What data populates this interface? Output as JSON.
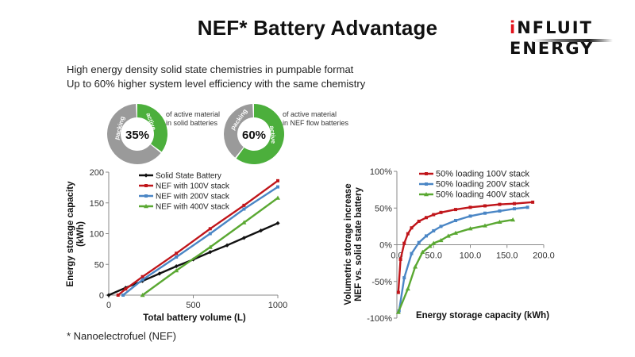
{
  "slide": {
    "title": "NEF* Battery Advantage",
    "bullets": [
      "High energy density solid state chemistries  in pumpable format",
      "Up to 60% higher system level efficiency with the same chemistry"
    ],
    "footnote": "* Nanoelectrofuel (NEF)"
  },
  "logo": {
    "line1_prefix": "i",
    "line1_rest": "NFLUIT",
    "line2": "ENERGY"
  },
  "donuts": [
    {
      "value_label": "35%",
      "fraction": 0.35,
      "active_label": "active",
      "packing_label": "packing",
      "caption": [
        "of active material",
        "in solid batteries"
      ]
    },
    {
      "value_label": "60%",
      "fraction": 0.6,
      "active_label": "active",
      "packing_label": "packing",
      "caption": [
        "of active material",
        "in NEF flow batteries"
      ]
    }
  ],
  "colors": {
    "solid": "#111111",
    "red": "#c0151a",
    "blue": "#4a86c5",
    "green": "#5aa832",
    "donut_green": "#4caf3c",
    "donut_gray": "#9a9a9a",
    "axis": "#888888"
  },
  "chart_data": [
    {
      "type": "line",
      "title": "",
      "xlabel": "Total battery volume (L)",
      "ylabel": [
        "Energy storage capacity",
        "(kWh)"
      ],
      "xlim": [
        0,
        1000
      ],
      "ylim": [
        0,
        200
      ],
      "xticks": [
        0,
        500,
        1000
      ],
      "yticks": [
        0,
        50,
        100,
        150,
        200
      ],
      "xtick_labels": [
        "0",
        "500",
        "1000"
      ],
      "ytick_labels": [
        "0",
        "50",
        "100",
        "150",
        "200"
      ],
      "grid": false,
      "legend": "top-center",
      "series": [
        {
          "name": "Solid State Battery",
          "color": "#111111",
          "marker": "diamond",
          "points": [
            [
              0,
              0
            ],
            [
              100,
              12
            ],
            [
              200,
              23
            ],
            [
              300,
              35
            ],
            [
              400,
              47
            ],
            [
              500,
              58
            ],
            [
              600,
              70
            ],
            [
              700,
              81
            ],
            [
              800,
              93
            ],
            [
              900,
              105
            ],
            [
              1000,
              117
            ]
          ]
        },
        {
          "name": "NEF with 100V stack",
          "color": "#c0151a",
          "marker": "square",
          "points": [
            [
              55,
              0
            ],
            [
              100,
              10
            ],
            [
              200,
              30
            ],
            [
              400,
              68
            ],
            [
              600,
              108
            ],
            [
              800,
              146
            ],
            [
              1000,
              186
            ]
          ]
        },
        {
          "name": "NEF with 200V stack",
          "color": "#4a86c5",
          "marker": "square",
          "points": [
            [
              85,
              0
            ],
            [
              200,
              25
            ],
            [
              400,
              62
            ],
            [
              600,
              100
            ],
            [
              800,
              140
            ],
            [
              1000,
              176
            ]
          ]
        },
        {
          "name": "NEF with 400V stack",
          "color": "#5aa832",
          "marker": "triangle",
          "points": [
            [
              200,
              0
            ],
            [
              400,
              40
            ],
            [
              600,
              78
            ],
            [
              800,
              118
            ],
            [
              1000,
              158
            ]
          ]
        }
      ]
    },
    {
      "type": "line",
      "title": "",
      "xlabel": "Energy storage capacity  (kWh)",
      "ylabel": [
        "Volumetric storage increase",
        "NEF vs. solid state battery"
      ],
      "xlim": [
        0,
        200
      ],
      "ylim": [
        -100,
        100
      ],
      "xticks": [
        0,
        50,
        100,
        150,
        200
      ],
      "yticks": [
        -100,
        -50,
        0,
        50,
        100
      ],
      "xtick_labels": [
        "0.0",
        "50.0",
        "100.0",
        "150.0",
        "200.0"
      ],
      "ytick_labels": [
        "-100%",
        "-50%",
        "0%",
        "50%",
        "100%"
      ],
      "grid": false,
      "legend": "top-center",
      "series": [
        {
          "name": "50% loading 100V stack",
          "color": "#c0151a",
          "marker": "square",
          "points": [
            [
              2,
              -65
            ],
            [
              5,
              -20
            ],
            [
              10,
              2
            ],
            [
              15,
              15
            ],
            [
              20,
              23
            ],
            [
              30,
              32
            ],
            [
              40,
              37
            ],
            [
              50,
              41
            ],
            [
              60,
              44
            ],
            [
              80,
              48
            ],
            [
              100,
              51
            ],
            [
              120,
              53
            ],
            [
              140,
              55
            ],
            [
              160,
              56
            ],
            [
              185,
              58
            ]
          ]
        },
        {
          "name": "50% loading 200V stack",
          "color": "#4a86c5",
          "marker": "square",
          "points": [
            [
              3,
              -90
            ],
            [
              10,
              -45
            ],
            [
              20,
              -12
            ],
            [
              30,
              3
            ],
            [
              40,
              12
            ],
            [
              50,
              19
            ],
            [
              60,
              25
            ],
            [
              80,
              33
            ],
            [
              100,
              39
            ],
            [
              120,
              43
            ],
            [
              140,
              46
            ],
            [
              160,
              49
            ],
            [
              178,
              51
            ]
          ]
        },
        {
          "name": "50% loading 400V stack",
          "color": "#5aa832",
          "marker": "triangle",
          "points": [
            [
              2,
              -92
            ],
            [
              15,
              -60
            ],
            [
              25,
              -30
            ],
            [
              35,
              -10
            ],
            [
              45,
              -2
            ],
            [
              50,
              2
            ],
            [
              60,
              6
            ],
            [
              70,
              12
            ],
            [
              80,
              16
            ],
            [
              100,
              22
            ],
            [
              120,
              26
            ],
            [
              140,
              31
            ],
            [
              158,
              34
            ]
          ]
        }
      ]
    }
  ]
}
